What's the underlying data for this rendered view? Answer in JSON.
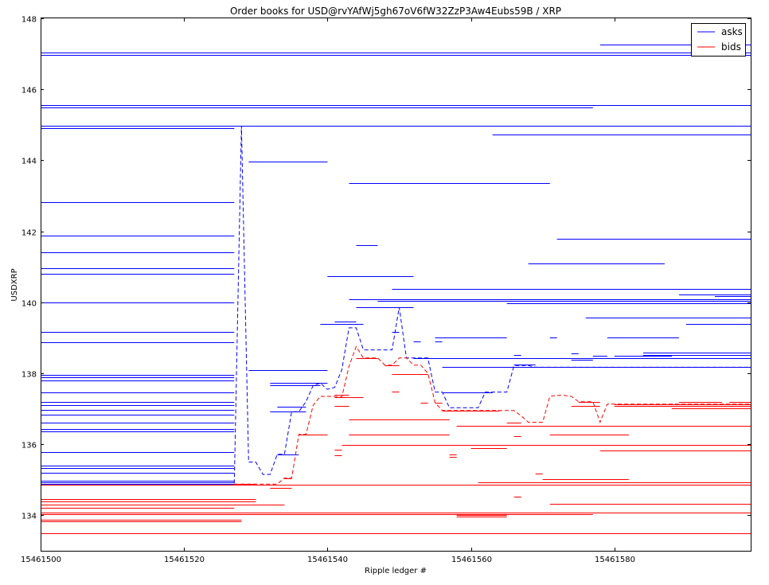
{
  "chart_data": {
    "type": "line",
    "title": "Order books for USD@rvYAfWj5gh67oV6fW32ZzP3Aw4Eubs59B / XRP",
    "xlabel": "Ripple ledger #",
    "ylabel": "USDXRP",
    "xlim": [
      15461500,
      15461599
    ],
    "ylim": [
      133,
      148
    ],
    "x_ticks": [
      15461500,
      15461520,
      15461540,
      15461560,
      15461580
    ],
    "x_tick_labels": [
      "15461500",
      "15461520",
      "15461540",
      "15461560",
      "15461580"
    ],
    "y_ticks": [
      134,
      136,
      138,
      140,
      142,
      144,
      146,
      148
    ],
    "y_tick_labels": [
      "134",
      "136",
      "138",
      "140",
      "142",
      "144",
      "146",
      "148"
    ],
    "legend": {
      "position": "top-right",
      "entries": [
        {
          "label": "asks",
          "color": "#0000ff"
        },
        {
          "label": "bids",
          "color": "#ff0000"
        }
      ]
    },
    "series": [
      {
        "name": "asks",
        "color": "#0000ff",
        "orders": [
          [
            15461500,
            15461599,
            147.03
          ],
          [
            15461500,
            15461599,
            146.97
          ],
          [
            15461578,
            15461599,
            147.27
          ],
          [
            15461500,
            15461599,
            145.56
          ],
          [
            15461500,
            15461577,
            145.48
          ],
          [
            15461500,
            15461599,
            144.97
          ],
          [
            15461500,
            15461527,
            144.9
          ],
          [
            15461563,
            15461599,
            144.73
          ],
          [
            15461529,
            15461540,
            143.97
          ],
          [
            15461543,
            15461571,
            143.35
          ],
          [
            15461500,
            15461527,
            142.83
          ],
          [
            15461500,
            15461527,
            141.87
          ],
          [
            15461572,
            15461599,
            141.8
          ],
          [
            15461544,
            15461547,
            141.6
          ],
          [
            15461500,
            15461527,
            141.4
          ],
          [
            15461568,
            15461587,
            141.1
          ],
          [
            15461500,
            15461527,
            140.97
          ],
          [
            15461500,
            15461527,
            140.81
          ],
          [
            15461540,
            15461552,
            140.74
          ],
          [
            15461549,
            15461599,
            140.37
          ],
          [
            15461589,
            15461599,
            140.23
          ],
          [
            15461594,
            15461599,
            140.18
          ],
          [
            15461543,
            15461599,
            140.08
          ],
          [
            15461547,
            15461599,
            140.03
          ],
          [
            15461500,
            15461527,
            140.0
          ],
          [
            15461565,
            15461599,
            139.98
          ],
          [
            15461544,
            15461552,
            139.86
          ],
          [
            15461576,
            15461599,
            139.57
          ],
          [
            15461541,
            15461544,
            139.46
          ],
          [
            15461539,
            15461545,
            139.38
          ],
          [
            15461590,
            15461599,
            139.4
          ],
          [
            15461500,
            15461527,
            139.17
          ],
          [
            15461549,
            15461550,
            139.17
          ],
          [
            15461555,
            15461565,
            139.02
          ],
          [
            15461579,
            15461589,
            139.02
          ],
          [
            15461571,
            15461572,
            139.02
          ],
          [
            15461552,
            15461553,
            138.89
          ],
          [
            15461555,
            15461556,
            138.89
          ],
          [
            15461500,
            15461527,
            138.87
          ],
          [
            15461584,
            15461599,
            138.58
          ],
          [
            15461574,
            15461575,
            138.56
          ],
          [
            15461566,
            15461567,
            138.52
          ],
          [
            15461577,
            15461579,
            138.49
          ],
          [
            15461580,
            15461588,
            138.49
          ],
          [
            15461584,
            15461599,
            138.52
          ],
          [
            15461552,
            15461599,
            138.43
          ],
          [
            15461574,
            15461577,
            138.38
          ],
          [
            15461566,
            15461569,
            138.25
          ],
          [
            15461556,
            15461599,
            138.17
          ],
          [
            15461529,
            15461540,
            138.1
          ],
          [
            15461534,
            15461535,
            138.08
          ],
          [
            15461500,
            15461527,
            137.95
          ],
          [
            15461500,
            15461527,
            137.88
          ],
          [
            15461500,
            15461527,
            137.8
          ],
          [
            15461532,
            15461540,
            137.72
          ],
          [
            15461532,
            15461539,
            137.66
          ],
          [
            15461500,
            15461527,
            137.47
          ],
          [
            15461556,
            15461563,
            137.47
          ],
          [
            15461500,
            15461527,
            137.2
          ],
          [
            15461500,
            15461527,
            137.1
          ],
          [
            15461500,
            15461527,
            136.97
          ],
          [
            15461533,
            15461537,
            137.06
          ],
          [
            15461500,
            15461527,
            136.83
          ],
          [
            15461532,
            15461537,
            136.92
          ],
          [
            15461500,
            15461527,
            136.6
          ],
          [
            15461500,
            15461527,
            136.43
          ],
          [
            15461500,
            15461527,
            136.37
          ],
          [
            15461500,
            15461527,
            135.77
          ],
          [
            15461533,
            15461536,
            135.72
          ],
          [
            15461500,
            15461527,
            135.4
          ],
          [
            15461500,
            15461527,
            135.33
          ],
          [
            15461500,
            15461527,
            135.2
          ],
          [
            15461500,
            15461527,
            134.98
          ],
          [
            15461500,
            15461527,
            134.93
          ],
          [
            15461500,
            15461527,
            134.88
          ]
        ],
        "best": [
          [
            15461527,
            134.9
          ],
          [
            15461528,
            144.97
          ],
          [
            15461529,
            135.5
          ],
          [
            15461530,
            135.5
          ],
          [
            15461531,
            135.15
          ],
          [
            15461532,
            135.15
          ],
          [
            15461533,
            135.72
          ],
          [
            15461534,
            135.72
          ],
          [
            15461535,
            136.92
          ],
          [
            15461536,
            136.92
          ],
          [
            15461537,
            137.2
          ],
          [
            15461538,
            137.66
          ],
          [
            15461539,
            137.72
          ],
          [
            15461540,
            137.55
          ],
          [
            15461541,
            137.6
          ],
          [
            15461542,
            138.1
          ],
          [
            15461543,
            139.28
          ],
          [
            15461544,
            139.28
          ],
          [
            15461545,
            138.66
          ],
          [
            15461546,
            138.66
          ],
          [
            15461547,
            138.66
          ],
          [
            15461548,
            138.66
          ],
          [
            15461549,
            138.66
          ],
          [
            15461550,
            139.86
          ],
          [
            15461551,
            138.43
          ],
          [
            15461552,
            138.43
          ],
          [
            15461553,
            138.43
          ],
          [
            15461554,
            138.43
          ],
          [
            15461555,
            137.47
          ],
          [
            15461556,
            137.47
          ],
          [
            15461557,
            137.03
          ],
          [
            15461558,
            137.03
          ],
          [
            15461559,
            137.03
          ],
          [
            15461560,
            137.03
          ],
          [
            15461561,
            137.03
          ],
          [
            15461562,
            137.47
          ],
          [
            15461563,
            137.47
          ],
          [
            15461564,
            137.47
          ],
          [
            15461565,
            137.47
          ],
          [
            15461566,
            138.22
          ],
          [
            15461567,
            138.22
          ],
          [
            15461568,
            138.22
          ],
          [
            15461569,
            138.17
          ],
          [
            15461599,
            138.17
          ]
        ]
      },
      {
        "name": "bids",
        "color": "#ff0000",
        "orders": [
          [
            15461500,
            15461530,
            134.45
          ],
          [
            15461500,
            15461530,
            134.38
          ],
          [
            15461500,
            15461529,
            134.3
          ],
          [
            15461500,
            15461527,
            134.2
          ],
          [
            15461500,
            15461599,
            134.08
          ],
          [
            15461500,
            15461577,
            134.03
          ],
          [
            15461500,
            15461528,
            133.88
          ],
          [
            15461500,
            15461528,
            133.83
          ],
          [
            15461500,
            15461599,
            133.5
          ],
          [
            15461500,
            15461599,
            134.86
          ],
          [
            15461527,
            15461530,
            134.88
          ],
          [
            15461532,
            15461535,
            134.78
          ],
          [
            15461534,
            15461535,
            135.05
          ],
          [
            15461561,
            15461599,
            134.93
          ],
          [
            15461570,
            15461582,
            135.02
          ],
          [
            15461566,
            15461567,
            134.52
          ],
          [
            15461569,
            15461570,
            135.18
          ],
          [
            15461571,
            15461599,
            134.33
          ],
          [
            15461580,
            15461582,
            134.33
          ],
          [
            15461558,
            15461565,
            134.0
          ],
          [
            15461558,
            15461565,
            133.97
          ],
          [
            15461541,
            15461542,
            135.68
          ],
          [
            15461541,
            15461542,
            135.85
          ],
          [
            15461542,
            15461599,
            135.98
          ],
          [
            15461557,
            15461558,
            135.72
          ],
          [
            15461557,
            15461558,
            135.65
          ],
          [
            15461560,
            15461565,
            135.9
          ],
          [
            15461578,
            15461599,
            135.83
          ],
          [
            15461583,
            15461599,
            135.98
          ],
          [
            15461536,
            15461540,
            136.28
          ],
          [
            15461543,
            15461557,
            136.28
          ],
          [
            15461571,
            15461582,
            136.28
          ],
          [
            15461566,
            15461567,
            136.23
          ],
          [
            15461543,
            15461557,
            136.7
          ],
          [
            15461558,
            15461599,
            136.53
          ],
          [
            15461575,
            15461577,
            136.53
          ],
          [
            15461583,
            15461591,
            136.53
          ],
          [
            15461591,
            15461599,
            136.53
          ],
          [
            15461541,
            15461543,
            137.07
          ],
          [
            15461574,
            15461578,
            137.07
          ],
          [
            15461580,
            15461599,
            137.07
          ],
          [
            15461588,
            15461599,
            137.02
          ],
          [
            15461541,
            15461545,
            137.33
          ],
          [
            15461541,
            15461543,
            137.4
          ],
          [
            15461549,
            15461554,
            137.98
          ],
          [
            15461548,
            15461550,
            138.23
          ],
          [
            15461549,
            15461550,
            137.48
          ],
          [
            15461553,
            15461554,
            137.17
          ],
          [
            15461555,
            15461556,
            137.17
          ],
          [
            15461565,
            15461567,
            136.62
          ],
          [
            15461575,
            15461578,
            137.2
          ],
          [
            15461580,
            15461599,
            137.13
          ],
          [
            15461589,
            15461595,
            137.2
          ],
          [
            15461596,
            15461599,
            137.2
          ],
          [
            15461544,
            15461547,
            138.43
          ],
          [
            15461556,
            15461564,
            136.95
          ],
          [
            15461529,
            15461534,
            134.3
          ]
        ],
        "best": [
          [
            15461527,
            134.88
          ],
          [
            15461530,
            134.88
          ],
          [
            15461531,
            134.88
          ],
          [
            15461532,
            134.88
          ],
          [
            15461533,
            134.88
          ],
          [
            15461534,
            135.05
          ],
          [
            15461535,
            135.05
          ],
          [
            15461536,
            136.28
          ],
          [
            15461537,
            136.28
          ],
          [
            15461538,
            137.1
          ],
          [
            15461539,
            137.35
          ],
          [
            15461540,
            137.35
          ],
          [
            15461541,
            137.35
          ],
          [
            15461542,
            137.33
          ],
          [
            15461543,
            138.2
          ],
          [
            15461544,
            138.75
          ],
          [
            15461545,
            138.43
          ],
          [
            15461546,
            138.43
          ],
          [
            15461547,
            138.43
          ],
          [
            15461548,
            138.23
          ],
          [
            15461549,
            138.23
          ],
          [
            15461550,
            138.43
          ],
          [
            15461551,
            138.43
          ],
          [
            15461552,
            138.23
          ],
          [
            15461553,
            138.23
          ],
          [
            15461554,
            138.0
          ],
          [
            15461555,
            137.17
          ],
          [
            15461556,
            136.95
          ],
          [
            15461557,
            136.95
          ],
          [
            15461558,
            136.95
          ],
          [
            15461559,
            136.95
          ],
          [
            15461560,
            136.95
          ],
          [
            15461561,
            136.95
          ],
          [
            15461562,
            136.95
          ],
          [
            15461563,
            136.95
          ],
          [
            15461564,
            136.95
          ],
          [
            15461565,
            136.95
          ],
          [
            15461566,
            136.95
          ],
          [
            15461567,
            136.8
          ],
          [
            15461568,
            136.62
          ],
          [
            15461569,
            136.62
          ],
          [
            15461570,
            136.62
          ],
          [
            15461571,
            137.35
          ],
          [
            15461572,
            137.38
          ],
          [
            15461573,
            137.38
          ],
          [
            15461574,
            137.35
          ],
          [
            15461575,
            137.2
          ],
          [
            15461576,
            137.2
          ],
          [
            15461577,
            137.2
          ],
          [
            15461578,
            136.62
          ],
          [
            15461579,
            137.13
          ],
          [
            15461599,
            137.13
          ]
        ]
      }
    ]
  }
}
